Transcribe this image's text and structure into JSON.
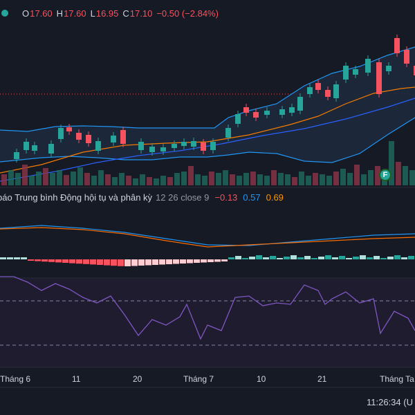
{
  "legend": {
    "o_label": "O",
    "o_value": "17.60",
    "h_label": "H",
    "h_value": "17.60",
    "l_label": "L",
    "l_value": "16.95",
    "c_label": "C",
    "c_value": "17.10",
    "change": "−0.50 (−2.84%)"
  },
  "macd": {
    "title": "báo Trung bình Động hội tụ và phân kỳ",
    "params": "12 26 close 9",
    "histogram_value": "−0.13",
    "macd_value": "0.57",
    "signal_value": "0.69"
  },
  "x_axis": {
    "labels": [
      "Tháng 6",
      "11",
      "20",
      "Tháng 7",
      "10",
      "21",
      "Tháng Ta"
    ]
  },
  "clock": "11:26:34 (U",
  "marker": "F",
  "colors": {
    "background": "#161a25",
    "up": "#26a69a",
    "down": "#f7525f",
    "bb_band": "#2196f3",
    "ma_orange": "#f57c00",
    "ma_blue": "#2962ff",
    "macd_line": "#2196f3",
    "signal_line": "#ff6d00",
    "rsi": "#7e57c2"
  }
}
